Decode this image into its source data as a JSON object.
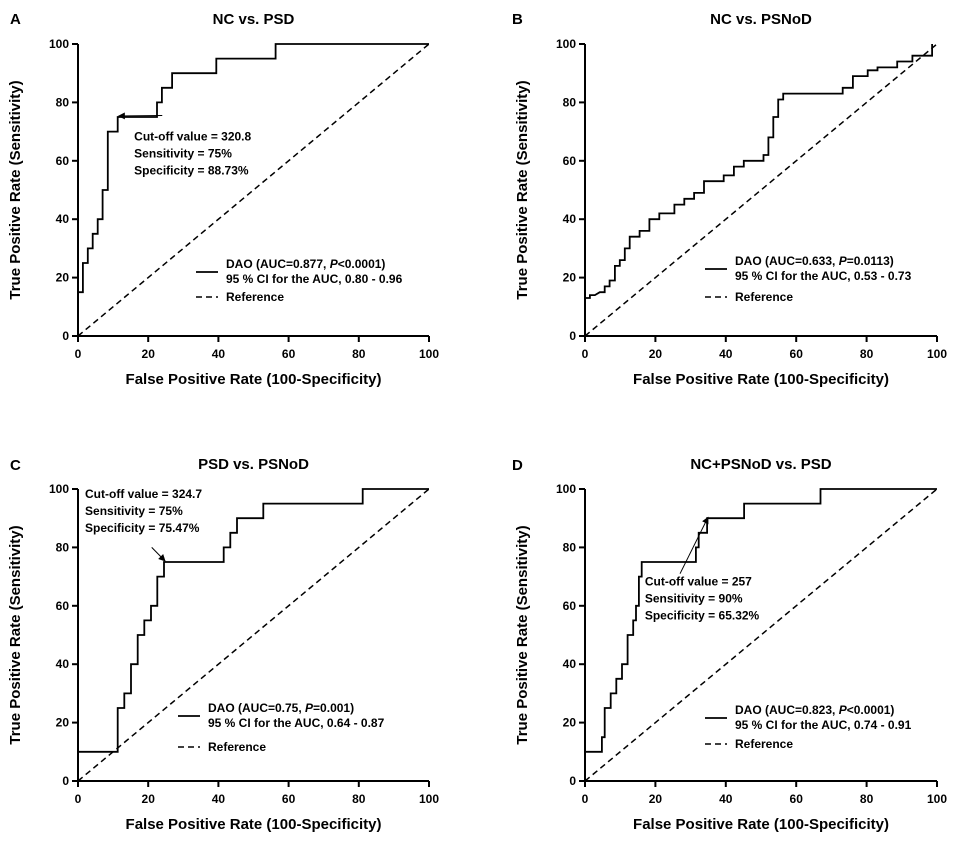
{
  "chart_data": [
    {
      "type": "line",
      "panel": "A",
      "title": "NC vs. PSD",
      "xlabel": "False Positive Rate (100-Specificity)",
      "ylabel": "True Positive Rate (Sensitivity)",
      "xlim": [
        0,
        100
      ],
      "ylim": [
        0,
        100
      ],
      "xticks": [
        0,
        20,
        40,
        60,
        80,
        100
      ],
      "yticks": [
        0,
        20,
        40,
        60,
        80,
        100
      ],
      "legend": {
        "position": "bottom-right",
        "series_label": "DAO (AUC=0.877, ",
        "p_label": "P",
        "p_value": "<0.0001)",
        "ci_label": "95 % CI for the AUC, 0.80 - 0.96",
        "reference_label": "Reference"
      },
      "annotation": {
        "lines": [
          "Cut-off value = 320.8",
          "Sensitivity = 75%",
          "Specificity = 88.73%"
        ],
        "point": [
          11.27,
          75
        ],
        "text_at": [
          16,
          67
        ],
        "arrow_tail": [
          24,
          75.5
        ]
      },
      "series": [
        {
          "name": "DAO",
          "x": [
            0,
            1.4,
            1.4,
            2.8,
            2.8,
            4.2,
            4.2,
            5.6,
            5.6,
            7,
            7,
            8.5,
            8.5,
            9.9,
            9.9,
            11.3,
            11.3,
            22.5,
            22.5,
            23.9,
            23.9,
            25.4,
            25.4,
            26.8,
            26.8,
            35.2,
            35.2,
            39.4,
            39.4,
            56.3,
            56.3,
            100
          ],
          "y": [
            15,
            15,
            25,
            25,
            30,
            30,
            35,
            35,
            40,
            40,
            50,
            50,
            70,
            70,
            70,
            70,
            75,
            75,
            80,
            80,
            85,
            85,
            85,
            85,
            90,
            90,
            90,
            90,
            95,
            95,
            100,
            100
          ]
        },
        {
          "name": "Reference",
          "x": [
            0,
            100
          ],
          "y": [
            0,
            100
          ]
        }
      ]
    },
    {
      "type": "line",
      "panel": "B",
      "title": "NC vs. PSNoD",
      "xlabel": "False Positive Rate (100-Specificity)",
      "ylabel": "True Positive Rate (Sensitivity)",
      "xlim": [
        0,
        100
      ],
      "ylim": [
        0,
        100
      ],
      "xticks": [
        0,
        20,
        40,
        60,
        80,
        100
      ],
      "yticks": [
        0,
        20,
        40,
        60,
        80,
        100
      ],
      "legend": {
        "position": "bottom-right",
        "series_label": "DAO (AUC=0.633, ",
        "p_label": "P",
        "p_value": "=0.0113)",
        "ci_label": "95 % CI for the AUC, 0.53 - 0.73",
        "reference_label": "Reference"
      },
      "annotation": null,
      "series": [
        {
          "name": "DAO",
          "x": [
            0,
            0,
            1.4,
            1.4,
            2.8,
            4.2,
            5.6,
            5.6,
            7,
            7,
            8.5,
            8.5,
            9.9,
            9.9,
            11.3,
            11.3,
            12.7,
            12.7,
            15.5,
            15.5,
            18.3,
            18.3,
            21.1,
            21.1,
            25.4,
            25.4,
            28.2,
            28.2,
            31,
            31,
            33.8,
            33.8,
            39.4,
            39.4,
            42.3,
            42.3,
            45.1,
            45.1,
            50.7,
            50.7,
            52.1,
            52.1,
            53.5,
            53.5,
            54.9,
            54.9,
            56.3,
            56.3,
            66.2,
            66.2,
            73.2,
            73.2,
            76.1,
            76.1,
            80.3,
            80.3,
            83.1,
            83.1,
            88.7,
            88.7,
            93,
            93,
            97.2,
            97.2,
            98.6,
            98.6
          ],
          "y": [
            11,
            13,
            13,
            14,
            14,
            15,
            15,
            17,
            17,
            19,
            19,
            24,
            24,
            26,
            26,
            30,
            30,
            34,
            34,
            36,
            36,
            40,
            40,
            42,
            42,
            45,
            45,
            47,
            47,
            49,
            49,
            53,
            53,
            55,
            55,
            58,
            58,
            60,
            60,
            62,
            62,
            68,
            68,
            75,
            75,
            81,
            81,
            83,
            83,
            83,
            83,
            85,
            85,
            89,
            89,
            91,
            91,
            92,
            92,
            94,
            94,
            96,
            96,
            96,
            96,
            100
          ]
        },
        {
          "name": "Reference",
          "x": [
            0,
            100
          ],
          "y": [
            0,
            100
          ]
        }
      ]
    },
    {
      "type": "line",
      "panel": "C",
      "title": "PSD vs. PSNoD",
      "xlabel": "False Positive Rate (100-Specificity)",
      "ylabel": "True Positive Rate (Sensitivity)",
      "xlim": [
        0,
        100
      ],
      "ylim": [
        0,
        100
      ],
      "xticks": [
        0,
        20,
        40,
        60,
        80,
        100
      ],
      "yticks": [
        0,
        20,
        40,
        60,
        80,
        100
      ],
      "legend": {
        "position": "bottom-right",
        "series_label": "DAO (AUC=0.75, ",
        "p_label": "P",
        "p_value": "=0.001)",
        "ci_label": "95 % CI for the AUC, 0.64 - 0.87",
        "reference_label": "Reference"
      },
      "annotation": {
        "lines": [
          "Cut-off value = 324.7",
          "Sensitivity = 75%",
          "Specificity = 75.47%"
        ],
        "point": [
          24.53,
          75
        ],
        "text_at": [
          2,
          97
        ],
        "arrow_tail": [
          21,
          80
        ]
      },
      "series": [
        {
          "name": "DAO",
          "x": [
            0,
            11.3,
            11.3,
            13.2,
            13.2,
            15.1,
            15.1,
            17,
            17,
            18.9,
            18.9,
            20.8,
            20.8,
            22.6,
            22.6,
            24.5,
            24.5,
            41.5,
            41.5,
            43.4,
            43.4,
            45.3,
            45.3,
            52.8,
            52.8,
            81.1,
            81.1,
            100
          ],
          "y": [
            10,
            10,
            25,
            25,
            30,
            30,
            40,
            40,
            50,
            50,
            55,
            55,
            60,
            60,
            70,
            70,
            75,
            75,
            80,
            80,
            85,
            85,
            90,
            90,
            95,
            95,
            100,
            100
          ]
        },
        {
          "name": "Reference",
          "x": [
            0,
            100
          ],
          "y": [
            0,
            100
          ]
        }
      ]
    },
    {
      "type": "line",
      "panel": "D",
      "title": "NC+PSNoD vs. PSD",
      "xlabel": "False Positive Rate (100-Specificity)",
      "ylabel": "True Positive Rate (Sensitivity)",
      "xlim": [
        0,
        100
      ],
      "ylim": [
        0,
        100
      ],
      "xticks": [
        0,
        20,
        40,
        60,
        80,
        100
      ],
      "yticks": [
        0,
        20,
        40,
        60,
        80,
        100
      ],
      "legend": {
        "position": "bottom-right",
        "series_label": "DAO (AUC=0.823, ",
        "p_label": "P",
        "p_value": "<0.0001)",
        "ci_label": "95 % CI for the AUC, 0.74 - 0.91",
        "reference_label": "Reference"
      },
      "annotation": {
        "lines": [
          "Cut-off value = 257",
          "Sensitivity = 90%",
          "Specificity = 65.32%"
        ],
        "point": [
          34.68,
          90
        ],
        "text_at": [
          17,
          67
        ],
        "arrow_tail": [
          27,
          71
        ]
      },
      "series": [
        {
          "name": "DAO",
          "x": [
            0,
            4.8,
            4.8,
            5.6,
            5.6,
            7.3,
            7.3,
            8.9,
            8.9,
            10.5,
            10.5,
            12.1,
            12.1,
            13.7,
            13.7,
            14.5,
            14.5,
            15.3,
            15.3,
            16.1,
            16.1,
            31.5,
            31.5,
            32.3,
            32.3,
            33.9,
            33.9,
            34.7,
            34.7,
            41.1,
            41.1,
            45.2,
            45.2,
            66.9,
            66.9,
            100
          ],
          "y": [
            10,
            10,
            15,
            15,
            25,
            25,
            30,
            30,
            35,
            35,
            40,
            40,
            50,
            50,
            55,
            55,
            60,
            60,
            70,
            70,
            75,
            75,
            80,
            80,
            85,
            85,
            85,
            85,
            90,
            90,
            90,
            90,
            95,
            95,
            100,
            100
          ]
        },
        {
          "name": "Reference",
          "x": [
            0,
            100
          ],
          "y": [
            0,
            100
          ]
        }
      ]
    }
  ]
}
